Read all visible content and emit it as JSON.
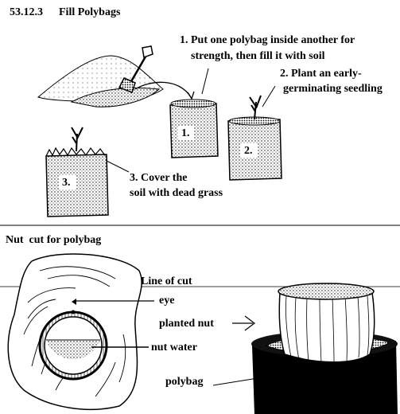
{
  "section_number": "53.12.3",
  "section_title": "Fill Polybags",
  "steps": [
    {
      "badge": "1.",
      "line1": "1. Put one polybag inside another for",
      "line2": "strength, then fill it with soil"
    },
    {
      "badge": "2.",
      "line1": "2. Plant an early-",
      "line2": "germinating seedling"
    },
    {
      "badge": "3.",
      "line1": "3. Cover the",
      "line2": "soil with dead grass"
    }
  ],
  "nut_section": {
    "title": "Nut  cut for polybag",
    "line_of_cut": "Line of cut",
    "eye": "eye",
    "nut_water": "nut water",
    "planted_nut": "planted nut",
    "polybag": "polybag"
  }
}
